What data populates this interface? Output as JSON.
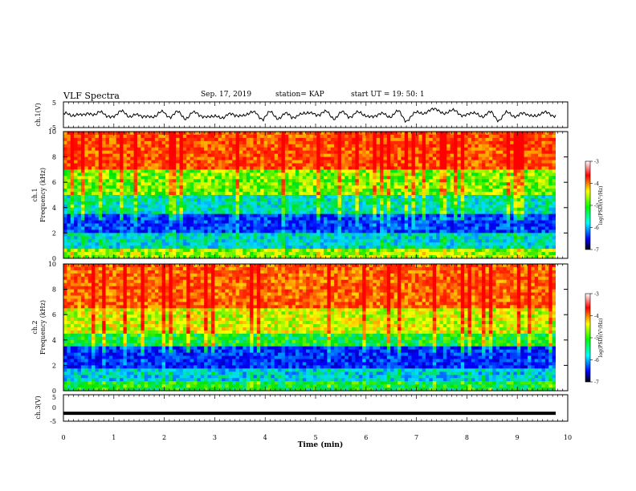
{
  "header": {
    "title": "VLF Spectra",
    "date": "Sep. 17, 2019",
    "station": "station= KAP",
    "start_ut": "start  UT =   19: 50: 1"
  },
  "chart_data": [
    {
      "type": "line",
      "ylabel": "ch.1(V)",
      "ylim": [
        -5,
        5
      ],
      "yticks": [
        "5",
        "-5"
      ],
      "xlim": [
        0,
        10
      ],
      "description_values": "noisy waveform oscillating roughly between -2 and 2 V",
      "values": [
        0.5,
        -1.0,
        1.2,
        -0.8,
        0.4,
        1.6,
        -1.4,
        0.2,
        1.0,
        -0.6,
        0.8,
        -1.8,
        0.3,
        -0.9,
        1.1,
        -0.4,
        0.6,
        -1.2,
        0.9,
        -0.7,
        0.2,
        -1.6,
        -0.8,
        0.4,
        -1.1,
        0.7,
        -0.3,
        1.0,
        -1.5,
        0.6,
        -0.9,
        0.2,
        -1.3,
        0.8,
        -0.5,
        1.4,
        -0.2,
        0.9,
        -1.0,
        0.5,
        -0.6,
        1.2,
        -0.8,
        0.3,
        -1.1,
        0.7,
        -0.4,
        0.9,
        -1.9,
        -0.2,
        0.6,
        1.8,
        1.4,
        1.6,
        0.8,
        1.2,
        0.4,
        -0.5,
        1.0,
        -0.7,
        0.6,
        -1.7,
        0.3,
        -0.4,
        0.8,
        -0.9,
        0.5,
        -0.2,
        0.7,
        0.1
      ]
    },
    {
      "type": "heatmap",
      "ylabel": "ch.1\nFrequency (kHz)",
      "ylim": [
        0,
        10
      ],
      "yticks": [
        "0",
        "2",
        "4",
        "6",
        "8",
        "10"
      ],
      "xlim": [
        0,
        10
      ],
      "colorbar": {
        "label": "log(PSD)(V²/Hz)",
        "ticks": [
          "-3",
          "-4",
          "-5",
          "-6",
          "-7"
        ],
        "range": [
          -7,
          -3
        ]
      },
      "bands_khz": [
        {
          "from": 0,
          "to": 0.8,
          "level": -4.5
        },
        {
          "from": 0.8,
          "to": 2.0,
          "level": -5.5
        },
        {
          "from": 2.0,
          "to": 3.6,
          "level": -6.2
        },
        {
          "from": 3.6,
          "to": 5.0,
          "level": -5.4
        },
        {
          "from": 5.0,
          "to": 7.0,
          "level": -4.6
        },
        {
          "from": 7.0,
          "to": 10.0,
          "level": -3.5
        }
      ]
    },
    {
      "type": "heatmap",
      "ylabel": "ch.2\nFrequency (kHz)",
      "ylim": [
        0,
        10
      ],
      "yticks": [
        "0",
        "2",
        "4",
        "6",
        "8",
        "10"
      ],
      "xlim": [
        0,
        10
      ],
      "colorbar": {
        "label": "log(PSD)(V²/Hz)",
        "ticks": [
          "-3",
          "-4",
          "-5",
          "-6",
          "-7"
        ],
        "range": [
          -7,
          -3
        ]
      },
      "bands_khz": [
        {
          "from": 0,
          "to": 0.8,
          "level": -5.0
        },
        {
          "from": 0.8,
          "to": 1.8,
          "level": -5.6
        },
        {
          "from": 1.8,
          "to": 3.4,
          "level": -6.3
        },
        {
          "from": 3.4,
          "to": 4.6,
          "level": -5.0
        },
        {
          "from": 4.6,
          "to": 6.6,
          "level": -4.3
        },
        {
          "from": 6.6,
          "to": 10.0,
          "level": -3.6
        }
      ]
    },
    {
      "type": "line",
      "ylabel": "ch.3(V)",
      "ylim": [
        -5,
        5
      ],
      "yticks": [
        "5",
        "0",
        "-5"
      ],
      "xlim": [
        0,
        10
      ],
      "values": [
        -2.0,
        -2.0
      ]
    }
  ],
  "x_axis": {
    "label": "Time (min)",
    "ticks": [
      "0",
      "1",
      "2",
      "3",
      "4",
      "5",
      "6",
      "7",
      "8",
      "9",
      "10"
    ]
  },
  "colors": {
    "waveform": "#000000",
    "spectrum_low": "#0000ff",
    "spectrum_high": "#ff0000"
  }
}
